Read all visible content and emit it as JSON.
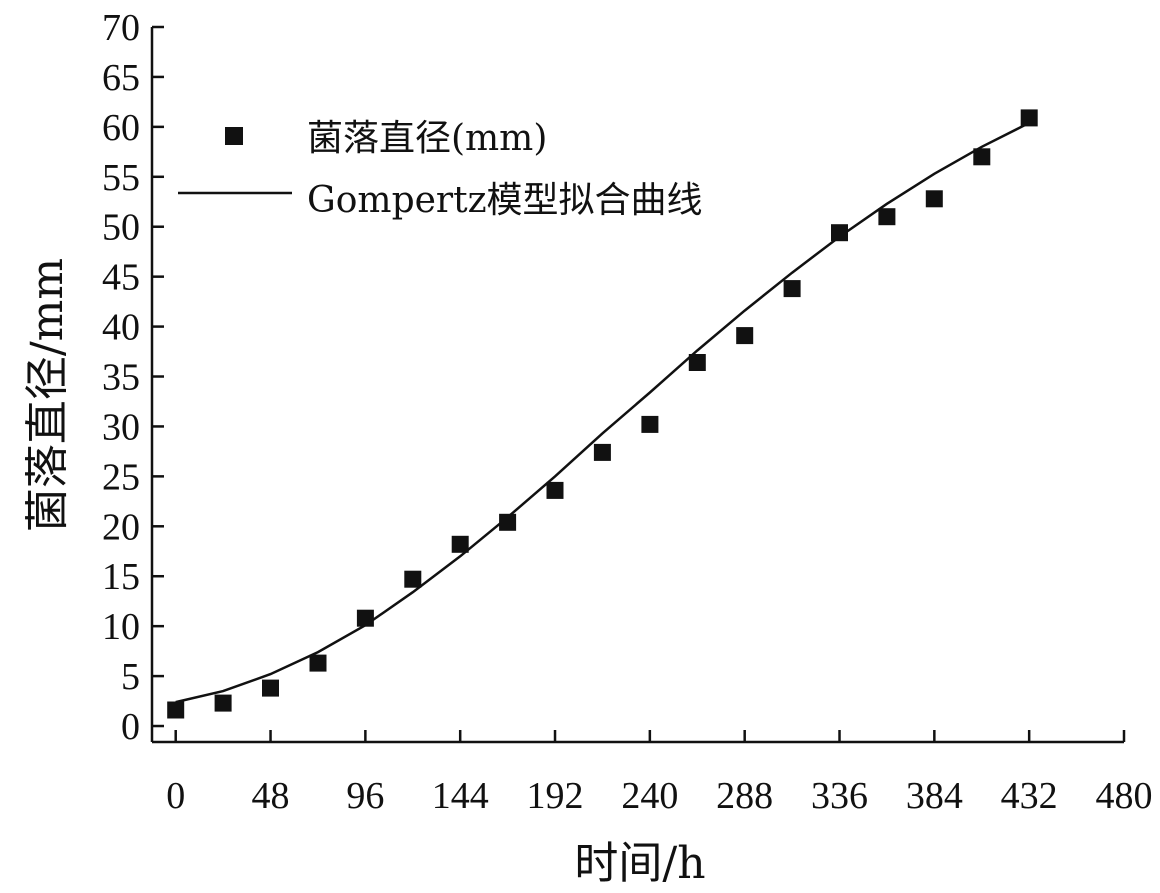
{
  "chart_data": {
    "type": "scatter",
    "title": "",
    "xlabel": "时间/h",
    "ylabel": "菌落直径/mm",
    "xlim": [
      -12,
      480
    ],
    "ylim": [
      -1.6,
      70
    ],
    "xticks": [
      0,
      48,
      96,
      144,
      192,
      240,
      288,
      336,
      384,
      432,
      480
    ],
    "yticks": [
      0,
      5,
      10,
      15,
      20,
      25,
      30,
      35,
      40,
      45,
      50,
      55,
      60,
      65,
      70
    ],
    "grid": false,
    "legend_position": "top-left",
    "series": [
      {
        "name": "菌落直径(mm)",
        "kind": "scatter",
        "marker": "square",
        "color": "#111111",
        "x": [
          0,
          24,
          48,
          72,
          96,
          120,
          144,
          168,
          192,
          216,
          240,
          264,
          288,
          312,
          336,
          360,
          384,
          408,
          432
        ],
        "y": [
          1.6,
          2.3,
          3.8,
          6.3,
          10.8,
          14.7,
          18.2,
          20.4,
          23.6,
          27.4,
          30.2,
          36.4,
          39.1,
          43.8,
          49.4,
          51.0,
          52.8,
          57.0,
          60.9
        ]
      },
      {
        "name": "Gompertz模型拟合曲线",
        "kind": "line",
        "color": "#111111",
        "x": [
          0,
          24,
          48,
          72,
          96,
          120,
          144,
          168,
          192,
          216,
          240,
          264,
          288,
          312,
          336,
          360,
          384,
          408,
          432
        ],
        "y": [
          2.4,
          3.5,
          5.2,
          7.4,
          10.1,
          13.4,
          17.0,
          20.9,
          25.0,
          29.3,
          33.4,
          37.6,
          41.6,
          45.4,
          49.0,
          52.3,
          55.3,
          58.0,
          60.4
        ]
      }
    ]
  }
}
